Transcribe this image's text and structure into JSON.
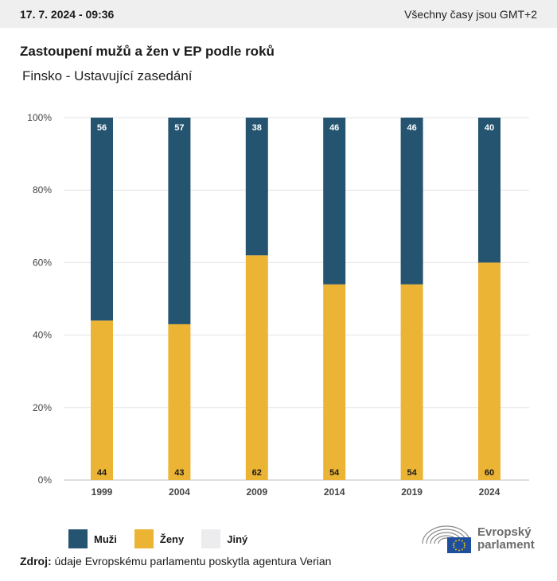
{
  "header": {
    "date": "17. 7. 2024 - 09:36",
    "timezone": "Všechny časy jsou GMT+2"
  },
  "colors": {
    "men": "#24546f",
    "women": "#ebb434",
    "other": "#ececee"
  },
  "chart_data": {
    "type": "bar",
    "stacked": true,
    "title": "Zastoupení mužů a žen v EP podle roků",
    "subtitle": "Finsko - Ustavující zasedání",
    "categories": [
      "1999",
      "2004",
      "2009",
      "2014",
      "2019",
      "2024"
    ],
    "series": [
      {
        "name": "Ženy",
        "values": [
          44,
          43,
          62,
          54,
          54,
          60
        ]
      },
      {
        "name": "Muži",
        "values": [
          56,
          57,
          38,
          46,
          46,
          40
        ]
      },
      {
        "name": "Jiný",
        "values": [
          0,
          0,
          0,
          0,
          0,
          0
        ]
      }
    ],
    "y_ticks": [
      "0%",
      "20%",
      "40%",
      "60%",
      "80%",
      "100%"
    ],
    "ylim": [
      0,
      100
    ],
    "grid": true,
    "legend_placement": "bottom-left"
  },
  "legend": {
    "men": "Muži",
    "women": "Ženy",
    "other": "Jiný"
  },
  "source": {
    "label": "Zdroj:",
    "text": "údaje Evropskému parlamentu poskytla agentura Verian"
  },
  "logo": {
    "line1": "Evropský",
    "line2": "parlament"
  }
}
